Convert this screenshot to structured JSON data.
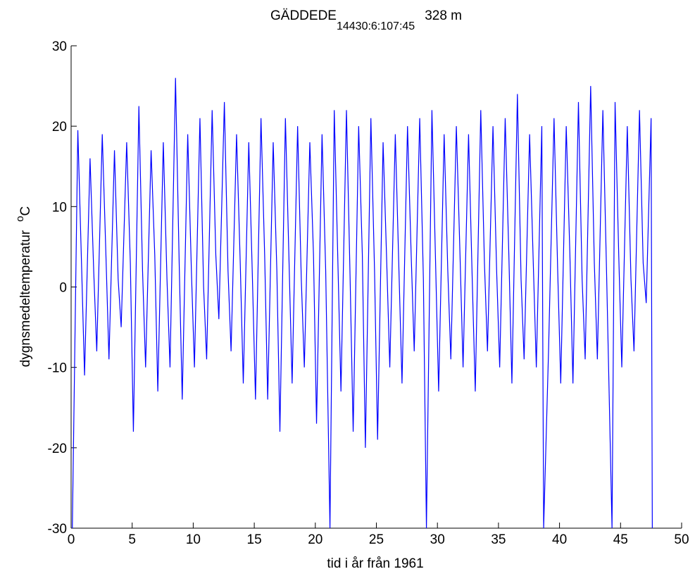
{
  "chart_data": {
    "type": "line",
    "title": "GÄDDEDE",
    "title_subscript": "14430:6:107:45",
    "title_suffix": "328 m",
    "xlabel": "tid i år från 1961",
    "ylabel": "dygnsmedeltemperatur",
    "ylabel_superscript": "o",
    "ylabel_unit": "C",
    "x": [
      0.1,
      0.55,
      0.85,
      1.1,
      1.55,
      1.85,
      2.1,
      2.55,
      2.85,
      3.1,
      3.55,
      3.85,
      4.1,
      4.55,
      4.85,
      5.1,
      5.55,
      5.85,
      6.1,
      6.55,
      6.85,
      7.1,
      7.55,
      7.85,
      8.1,
      8.55,
      8.85,
      9.1,
      9.55,
      9.85,
      10.1,
      10.55,
      10.85,
      11.1,
      11.55,
      11.85,
      12.1,
      12.55,
      12.85,
      13.1,
      13.55,
      13.85,
      14.1,
      14.55,
      14.85,
      15.1,
      15.55,
      15.85,
      16.1,
      16.55,
      16.85,
      17.1,
      17.55,
      17.85,
      18.1,
      18.55,
      18.85,
      19.1,
      19.55,
      19.85,
      20.1,
      20.55,
      20.85,
      21.2,
      21.55,
      21.85,
      22.1,
      22.55,
      22.85,
      23.1,
      23.55,
      23.85,
      24.1,
      24.55,
      24.85,
      25.1,
      25.55,
      25.85,
      26.1,
      26.55,
      26.85,
      27.1,
      27.55,
      27.85,
      28.1,
      28.55,
      28.85,
      29.1,
      29.55,
      29.85,
      30.1,
      30.55,
      30.85,
      31.1,
      31.55,
      31.85,
      32.1,
      32.55,
      32.85,
      33.1,
      33.55,
      33.85,
      34.1,
      34.55,
      34.85,
      35.1,
      35.55,
      35.85,
      36.1,
      36.55,
      36.85,
      37.1,
      37.55,
      37.85,
      38.1,
      38.55,
      38.7,
      39.1,
      39.55,
      39.85,
      40.1,
      40.55,
      40.85,
      41.1,
      41.55,
      41.85,
      42.1,
      42.55,
      42.85,
      43.1,
      43.55,
      43.85,
      44.3,
      44.55,
      44.85,
      45.1,
      45.55,
      45.85,
      46.1,
      46.55,
      46.85,
      47.1,
      47.5,
      47.6
    ],
    "series": [
      {
        "name": "dygnsmedeltemperatur",
        "color": "#0000ff",
        "values": [
          -30,
          19.5,
          3,
          -11,
          16,
          2,
          -8,
          19,
          4,
          -9,
          17,
          1,
          -5,
          18,
          3,
          -18,
          22.5,
          2,
          -10,
          17,
          4,
          -13,
          18,
          1,
          -10,
          26,
          3,
          -14,
          19,
          2,
          -10,
          21,
          0,
          -9,
          22,
          4,
          -4,
          23,
          2,
          -8,
          19,
          3,
          -12,
          18,
          1,
          -14,
          21,
          4,
          -14,
          18,
          2,
          -18,
          21,
          3,
          -12,
          20,
          1,
          -10,
          18,
          4,
          -17,
          19,
          2,
          -30,
          22,
          3,
          -13,
          22,
          1,
          -18,
          20,
          4,
          -20,
          21,
          2,
          -19,
          18,
          3,
          -10,
          19,
          2,
          -12,
          20,
          4,
          -8,
          21,
          1,
          -30,
          22,
          3,
          -13,
          19,
          2,
          -9,
          20,
          4,
          -10,
          19,
          1,
          -13,
          22,
          3,
          -8,
          20,
          2,
          -10,
          21,
          4,
          -12,
          24,
          1,
          -9,
          19,
          3,
          -10,
          20,
          -30,
          -8,
          21,
          2,
          -12,
          20,
          4,
          -12,
          23,
          1,
          -9,
          25,
          3,
          -9,
          22,
          2,
          -30,
          23,
          4,
          -10,
          20,
          1,
          -8,
          22,
          3,
          -2,
          21,
          -30
        ]
      }
    ],
    "xlim": [
      0,
      50
    ],
    "xticks": [
      0,
      5,
      10,
      15,
      20,
      25,
      30,
      35,
      40,
      45,
      50
    ],
    "ylim": [
      -30,
      30
    ],
    "yticks": [
      -30,
      -20,
      -10,
      0,
      10,
      20,
      30
    ]
  }
}
